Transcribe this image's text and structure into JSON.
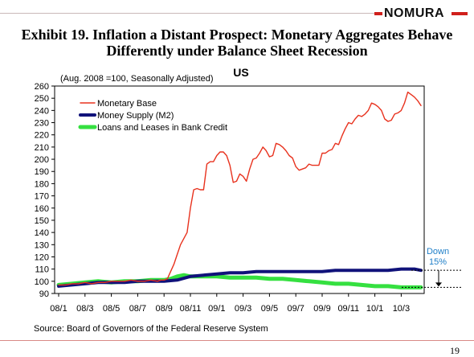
{
  "brand": {
    "name": "NOMURA",
    "color": "#d0201c"
  },
  "title_line1": "Exhibit 19. Inflation a Distant Prospect: Monetary Aggregates Behave",
  "title_line2": "Differently under Balance Sheet Recession",
  "page_number": "19",
  "chart_data": {
    "type": "line",
    "title": "US",
    "subtitle": "(Aug. 2008 =100, Seasonally Adjusted)",
    "source": "Source: Board of Governors of the Federal Reserve System",
    "ylim": [
      90,
      260
    ],
    "yticks": [
      90,
      100,
      110,
      120,
      130,
      140,
      150,
      160,
      170,
      180,
      190,
      200,
      210,
      220,
      230,
      240,
      250,
      260
    ],
    "x_range": [
      0,
      34
    ],
    "xticks": [
      {
        "label": "08/1",
        "month": 0
      },
      {
        "label": "08/3",
        "month": 2
      },
      {
        "label": "08/5",
        "month": 4
      },
      {
        "label": "08/7",
        "month": 6
      },
      {
        "label": "08/9",
        "month": 8
      },
      {
        "label": "08/11",
        "month": 10
      },
      {
        "label": "09/1",
        "month": 12
      },
      {
        "label": "09/3",
        "month": 14
      },
      {
        "label": "09/5",
        "month": 16
      },
      {
        "label": "09/7",
        "month": 18
      },
      {
        "label": "09/9",
        "month": 20
      },
      {
        "label": "09/11",
        "month": 22
      },
      {
        "label": "10/1",
        "month": 24
      },
      {
        "label": "10/3",
        "month": 26
      }
    ],
    "grid": false,
    "legend_position": "top-left",
    "annotation": {
      "lines": [
        "Down",
        "15%"
      ],
      "color": "#1f7fc8",
      "from": 109,
      "to": 95
    },
    "series": [
      {
        "name": "Monetary Base",
        "color": "#e8321e",
        "x": [
          0,
          0.5,
          1,
          1.5,
          2,
          2.5,
          3,
          3.5,
          4,
          4.5,
          5,
          5.5,
          6,
          6.5,
          7,
          7.5,
          7.75,
          8,
          8.25,
          8.5,
          8.75,
          9,
          9.25,
          9.5,
          9.75,
          10,
          10.25,
          10.5,
          10.75,
          11,
          11.25,
          11.5,
          11.75,
          12,
          12.25,
          12.5,
          12.75,
          13,
          13.25,
          13.5,
          13.75,
          14,
          14.25,
          14.5,
          14.75,
          15,
          15.25,
          15.5,
          15.75,
          16,
          16.25,
          16.5,
          16.75,
          17,
          17.25,
          17.5,
          17.75,
          18,
          18.25,
          18.5,
          18.75,
          19,
          19.25,
          19.5,
          19.75,
          20,
          20.25,
          20.5,
          20.75,
          21,
          21.25,
          21.5,
          21.75,
          22,
          22.25,
          22.5,
          22.75,
          23,
          23.25,
          23.5,
          23.75,
          24,
          24.25,
          24.5,
          24.75,
          25,
          25.25,
          25.5,
          25.75,
          26,
          26.25,
          26.5,
          26.75,
          27,
          27.25,
          27.5
        ],
        "values": [
          97,
          97,
          98,
          98,
          99,
          98,
          99,
          99,
          100,
          100,
          100,
          101,
          100,
          100,
          101,
          100,
          101,
          101,
          102,
          108,
          114,
          122,
          130,
          135,
          140,
          160,
          175,
          176,
          175,
          175,
          196,
          198,
          198,
          203,
          206,
          206,
          203,
          195,
          181,
          182,
          188,
          186,
          182,
          192,
          200,
          201,
          205,
          210,
          207,
          202,
          203,
          213,
          212,
          210,
          207,
          203,
          201,
          194,
          191,
          192,
          193,
          196,
          195,
          195,
          195,
          205,
          205,
          207,
          208,
          213,
          212,
          219,
          225,
          230,
          229,
          233,
          236,
          235,
          237,
          240,
          246,
          245,
          243,
          240,
          233,
          231,
          232,
          237,
          238,
          240,
          246,
          255,
          253,
          251,
          248,
          244
        ]
      },
      {
        "name": "Money Supply (M2)",
        "color": "#10127a",
        "x": [
          0,
          1,
          2,
          3,
          4,
          5,
          6,
          7,
          8,
          9,
          10,
          11,
          12,
          13,
          14,
          15,
          16,
          17,
          18,
          19,
          20,
          21,
          22,
          23,
          24,
          25,
          26,
          27,
          27.5
        ],
        "values": [
          96,
          97,
          98,
          99,
          99,
          99,
          100,
          100,
          100,
          101,
          104,
          105,
          106,
          107,
          107,
          108,
          108,
          108,
          108,
          108,
          108,
          109,
          109,
          109,
          109,
          109,
          110,
          110,
          109
        ]
      },
      {
        "name": "Loans and Leases in Bank Credit",
        "color": "#35e040",
        "x": [
          0,
          1,
          2,
          3,
          4,
          5,
          6,
          7,
          8,
          8.5,
          9,
          9.5,
          10,
          11,
          12,
          13,
          14,
          15,
          16,
          17,
          18,
          19,
          20,
          21,
          22,
          23,
          24,
          25,
          26,
          27,
          27.5
        ],
        "values": [
          97,
          98,
          99,
          100,
          99,
          100,
          100,
          101,
          101,
          102,
          104,
          105,
          104,
          104,
          104,
          103,
          103,
          103,
          102,
          102,
          101,
          100,
          99,
          98,
          98,
          97,
          96,
          96,
          95,
          95,
          95
        ]
      }
    ]
  }
}
